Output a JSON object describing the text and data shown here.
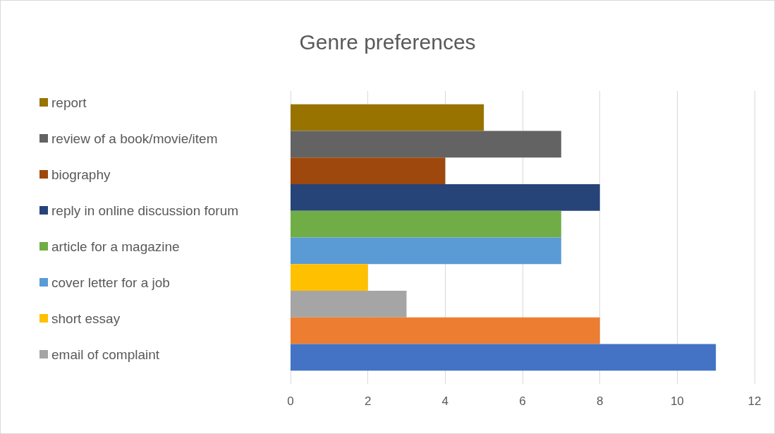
{
  "chart_data": {
    "type": "bar",
    "title": "Genre preferences",
    "orientation": "horizontal",
    "categories": [
      null
    ],
    "series": [
      {
        "name": "report",
        "color": "#997300",
        "values": [
          5
        ]
      },
      {
        "name": "review of a book/movie/item",
        "color": "#636363",
        "values": [
          7
        ]
      },
      {
        "name": "biography",
        "color": "#9e480e",
        "values": [
          4
        ]
      },
      {
        "name": "reply in online discussion forum",
        "color": "#264478",
        "values": [
          8
        ]
      },
      {
        "name": "article for a magazine",
        "color": "#70ad47",
        "values": [
          7
        ]
      },
      {
        "name": "cover letter for a job",
        "color": "#5b9bd5",
        "values": [
          7
        ]
      },
      {
        "name": "short essay",
        "color": "#ffc000",
        "values": [
          2
        ]
      },
      {
        "name": "email of complaint",
        "color": "#a5a5a5",
        "values": [
          3
        ]
      },
      {
        "color": "#ed7d31",
        "values": [
          8
        ]
      },
      {
        "color": "#4472c4",
        "values": [
          11
        ]
      }
    ],
    "xlim": [
      0,
      12
    ],
    "xticks": [
      0,
      2,
      4,
      6,
      8,
      10,
      12
    ],
    "grid": "x",
    "legend": "left"
  }
}
